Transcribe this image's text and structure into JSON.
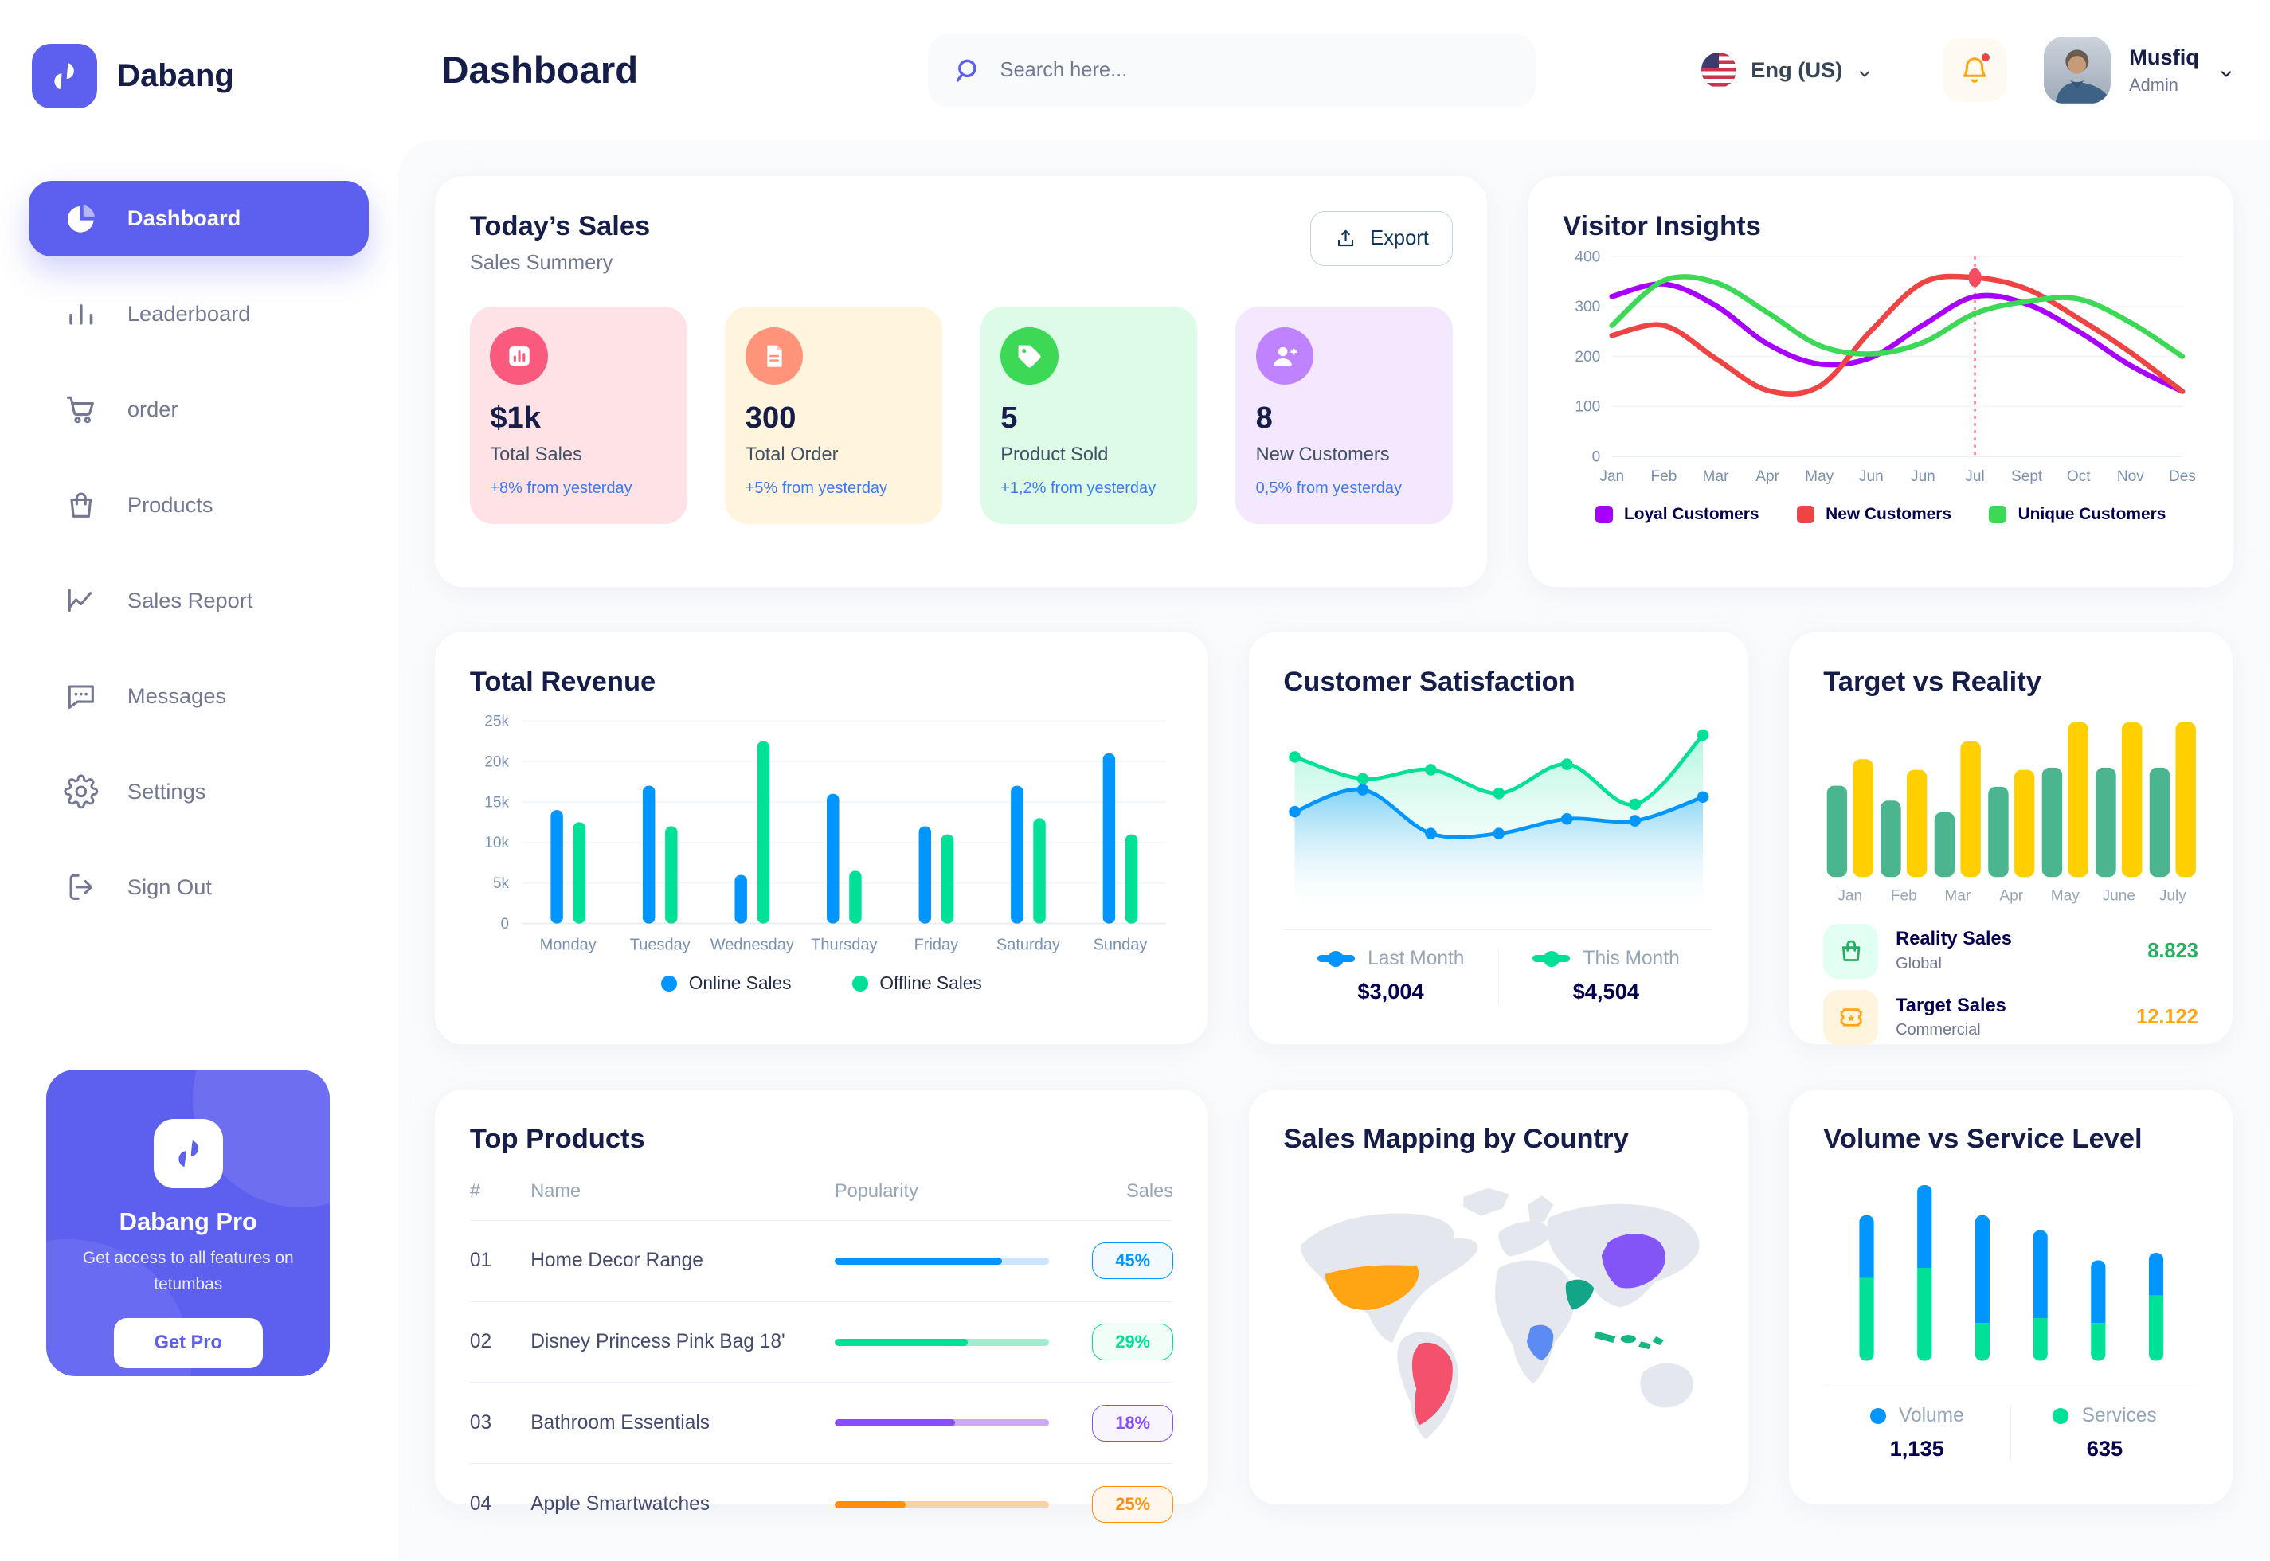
{
  "sidebar": {
    "brand": "Dabang",
    "items": [
      {
        "label": "Dashboard",
        "icon": "pie-chart-icon",
        "cls": "side-item active",
        "name": "sidebar-item-dashboard"
      },
      {
        "label": "Leaderboard",
        "icon": "bar-chart-icon",
        "cls": "side-item",
        "name": "sidebar-item-leaderboard"
      },
      {
        "label": "order",
        "icon": "cart-icon",
        "cls": "side-item",
        "name": "sidebar-item-order"
      },
      {
        "label": "Products",
        "icon": "bag-icon",
        "cls": "side-item",
        "name": "sidebar-item-products"
      },
      {
        "label": "Sales Report",
        "icon": "line-chart-icon",
        "cls": "side-item",
        "name": "sidebar-item-sales-report"
      },
      {
        "label": "Messages",
        "icon": "message-icon",
        "cls": "side-item",
        "name": "sidebar-item-messages"
      },
      {
        "label": "Settings",
        "icon": "gear-icon",
        "cls": "side-item",
        "name": "sidebar-item-settings"
      },
      {
        "label": "Sign Out",
        "icon": "sign-out-icon",
        "cls": "side-item",
        "name": "sidebar-item-sign-out"
      }
    ],
    "pro": {
      "title": "Dabang Pro",
      "subtitle": "Get access to all features on tetumbas",
      "button": "Get Pro"
    }
  },
  "header": {
    "title": "Dashboard",
    "search_placeholder": "Search here...",
    "language": "Eng (US)",
    "user": {
      "name": "Musfiq",
      "role": "Admin"
    }
  },
  "todays_sales": {
    "title": "Today’s Sales",
    "subtitle": "Sales Summery",
    "export_label": "Export",
    "stats": [
      {
        "value": "$1k",
        "label": "Total Sales",
        "delta": "+8% from yesterday",
        "bg": "#FFE2E5",
        "icon_bg": "#FA5A7D",
        "icon": "stat-chart-icon",
        "name": "stat-total-sales"
      },
      {
        "value": "300",
        "label": "Total Order",
        "delta": "+5% from yesterday",
        "bg": "#FFF4DE",
        "icon_bg": "#FF947A",
        "icon": "stat-file-icon",
        "name": "stat-total-order"
      },
      {
        "value": "5",
        "label": "Product Sold",
        "delta": "+1,2% from yesterday",
        "bg": "#DCFCE7",
        "icon_bg": "#3CD856",
        "icon": "stat-tag-icon",
        "name": "stat-product-sold"
      },
      {
        "value": "8",
        "label": "New Customers",
        "delta": "0,5% from yesterday",
        "bg": "#F3E8FF",
        "icon_bg": "#BF83FF",
        "icon": "stat-user-add-icon",
        "name": "stat-new-customers"
      }
    ]
  },
  "chart_data": [
    {
      "id": "visitor_insights",
      "type": "line",
      "title": "Visitor Insights",
      "x_labels": [
        "Jan",
        "Feb",
        "Mar",
        "Apr",
        "May",
        "Jun",
        "Jun",
        "Jul",
        "Sept",
        "Oct",
        "Nov",
        "Des"
      ],
      "ylim": [
        0,
        400
      ],
      "yticks": [
        0,
        100,
        200,
        300,
        400
      ],
      "grid": true,
      "legend_position": "bottom",
      "series": [
        {
          "name": "Loyal Customers",
          "color": "#A700FF",
          "values": [
            320,
            345,
            302,
            225,
            185,
            198,
            263,
            320,
            305,
            250,
            182,
            130
          ]
        },
        {
          "name": "New Customers",
          "color": "#EF4444",
          "values": [
            242,
            262,
            196,
            132,
            140,
            252,
            348,
            358,
            335,
            276,
            208,
            130
          ]
        },
        {
          "name": "Unique Customers",
          "color": "#3CD856",
          "values": [
            262,
            352,
            348,
            288,
            222,
            205,
            228,
            286,
            310,
            315,
            268,
            200
          ]
        }
      ],
      "marker": {
        "series": "New Customers",
        "index": 7,
        "x_label": "Jul",
        "color": "#F64E60"
      }
    },
    {
      "id": "total_revenue",
      "type": "bar",
      "title": "Total Revenue",
      "categories": [
        "Monday",
        "Tuesday",
        "Wednesday",
        "Thursday",
        "Friday",
        "Saturday",
        "Sunday"
      ],
      "ylim": [
        0,
        25
      ],
      "ytick_labels": [
        "0",
        "5k",
        "10k",
        "15k",
        "20k",
        "25k"
      ],
      "grid": true,
      "legend_position": "bottom",
      "series": [
        {
          "name": "Online Sales",
          "color": "#0095FF",
          "values": [
            14,
            17,
            6,
            16,
            12,
            17,
            21
          ]
        },
        {
          "name": "Offline Sales",
          "color": "#00E096",
          "values": [
            12.5,
            12,
            22.5,
            6.5,
            11,
            13,
            11
          ]
        }
      ]
    },
    {
      "id": "customer_satisfaction",
      "type": "area",
      "title": "Customer Satisfaction",
      "ylim": [
        0,
        100
      ],
      "grid": false,
      "series": [
        {
          "name": "This Month",
          "color": "#00E096",
          "fill_from": "rgba(0,224,150,0.30)",
          "values": [
            82,
            70,
            75,
            62,
            78,
            56,
            94
          ],
          "value_label": "$4,504"
        },
        {
          "name": "Last Month",
          "color": "#0095FF",
          "fill_from": "rgba(0,149,255,0.40)",
          "values": [
            52,
            64,
            40,
            40,
            48,
            47,
            60
          ],
          "value_label": "$3,004"
        }
      ],
      "legend": [
        {
          "label": "Last Month",
          "value": "$3,004",
          "color": "#0095FF"
        },
        {
          "label": "This Month",
          "value": "$4,504",
          "color": "#00E096"
        }
      ]
    },
    {
      "id": "target_vs_reality",
      "type": "grouped-bar",
      "title": "Target vs Reality",
      "categories": [
        "Jan",
        "Feb",
        "Mar",
        "Apr",
        "May",
        "June",
        "July"
      ],
      "ylim": [
        0,
        15
      ],
      "grid": false,
      "series": [
        {
          "name": "Reality Sales",
          "color": "#4AB58E",
          "values": [
            8.6,
            7.2,
            6.1,
            8.5,
            10.3,
            10.3,
            10.3
          ]
        },
        {
          "name": "Target Sales",
          "color": "#FFCF00",
          "values": [
            11.1,
            10.1,
            12.8,
            10.1,
            14.6,
            14.6,
            14.6
          ]
        }
      ],
      "legend": [
        {
          "label": "Reality Sales",
          "sub": "Global",
          "value": "8.823",
          "value_color": "#27AE60",
          "icon": "handbag-icon",
          "icon_bg": "#E2FFF3",
          "icon_color": "#27AE60"
        },
        {
          "label": "Target Sales",
          "sub": "Commercial",
          "value": "12.122",
          "value_color": "#FFA412",
          "icon": "ticket-icon",
          "icon_bg": "#FFF4DE",
          "icon_color": "#FFA412"
        }
      ]
    },
    {
      "id": "volume_vs_service",
      "type": "stacked-bar",
      "title": "Volume vs Service Level",
      "ylim": [
        0,
        75
      ],
      "grid": false,
      "series": [
        {
          "name": "Volume",
          "color": "#0095FF",
          "values": [
            25,
            33,
            43,
            35,
            25,
            17
          ]
        },
        {
          "name": "Services",
          "color": "#00E096",
          "values": [
            33,
            37,
            15,
            17,
            15,
            26
          ]
        }
      ],
      "legend": [
        {
          "label": "Volume",
          "value": "1,135",
          "color": "#0095FF"
        },
        {
          "label": "Services",
          "value": "635",
          "color": "#00E096"
        }
      ]
    }
  ],
  "top_products": {
    "title": "Top Products",
    "columns": [
      "#",
      "Name",
      "Popularity",
      "Sales"
    ],
    "rows": [
      {
        "num": "01",
        "name": "Home Decor Range",
        "pct": 78,
        "color": "#0095FF",
        "track": "#CDE4FE",
        "badge_bg": "#F2F9FF",
        "sales": "45%"
      },
      {
        "num": "02",
        "name": "Disney Princess Pink Bag 18'",
        "pct": 62,
        "color": "#00E096",
        "track": "#9BF0CE",
        "badge_bg": "#F1FDF7",
        "sales": "29%"
      },
      {
        "num": "03",
        "name": "Bathroom Essentials",
        "pct": 56,
        "color": "#884DFF",
        "track": "#CDA9FC",
        "badge_bg": "#F9F5FF",
        "sales": "18%"
      },
      {
        "num": "04",
        "name": "Apple Smartwatches",
        "pct": 33,
        "color": "#FF8F0D",
        "track": "#FFD2A0",
        "badge_bg": "#FFF6EC",
        "sales": "25%"
      }
    ]
  },
  "sales_mapping": {
    "title": "Sales Mapping by Country",
    "countries": [
      {
        "key": "united-states",
        "name": "United States",
        "color": "#FFA412"
      },
      {
        "key": "brazil",
        "name": "Brazil",
        "color": "#F4516C"
      },
      {
        "key": "saudi-arabia",
        "name": "Saudi Arabia",
        "color": "#12A588"
      },
      {
        "key": "dr-congo",
        "name": "DR Congo",
        "color": "#5D8BF4"
      },
      {
        "key": "china",
        "name": "China",
        "color": "#8455F6"
      },
      {
        "key": "indonesia",
        "name": "Indonesia",
        "color": "#16B77F"
      }
    ]
  }
}
